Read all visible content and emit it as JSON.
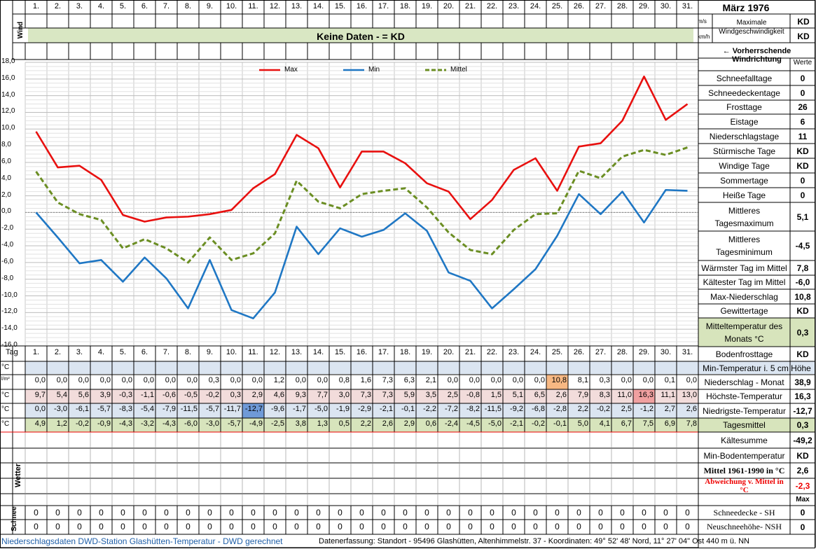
{
  "month_title": "März 1976",
  "days": [
    "1.",
    "2.",
    "3.",
    "4.",
    "5.",
    "6.",
    "7.",
    "8.",
    "9.",
    "10.",
    "11.",
    "12.",
    "13.",
    "14.",
    "15.",
    "16.",
    "17.",
    "18.",
    "19.",
    "20.",
    "21.",
    "22.",
    "23.",
    "24.",
    "25.",
    "26.",
    "27.",
    "28.",
    "29.",
    "30.",
    "31."
  ],
  "wind": {
    "label": "Wind",
    "unit_ms": "m/s",
    "unit_kmh": "km/h",
    "max_label": "Maximale Windgeschwindigkeit",
    "max_value": "KD",
    "max_value2": "KD",
    "no_data": "Keine Daten -  = KD",
    "direction_label": "← Vorherrschende Windrichtung"
  },
  "chart_data": {
    "type": "line",
    "x": [
      "1.",
      "2.",
      "3.",
      "4.",
      "5.",
      "6.",
      "7.",
      "8.",
      "9.",
      "10.",
      "11.",
      "12.",
      "13.",
      "14.",
      "15.",
      "16.",
      "17.",
      "18.",
      "19.",
      "20.",
      "21.",
      "22.",
      "23.",
      "24.",
      "25.",
      "26.",
      "27.",
      "28.",
      "29.",
      "30.",
      "31."
    ],
    "ylim": [
      -16,
      18
    ],
    "yticks": [
      "18,0",
      "16,0",
      "14,0",
      "12,0",
      "10,0",
      "8,0",
      "6,0",
      "4,0",
      "2,0",
      "0,0",
      "-2,0",
      "-4,0",
      "-6,0",
      "-8,0",
      "-10,0",
      "-12,0",
      "-14,0",
      "-16,0"
    ],
    "grid": true,
    "legend_position": "top",
    "series": [
      {
        "name": "Max",
        "color": "#e8100f",
        "dash": false,
        "values": [
          9.7,
          5.4,
          5.6,
          3.9,
          -0.3,
          -1.1,
          -0.6,
          -0.5,
          -0.2,
          0.3,
          2.9,
          4.6,
          9.3,
          7.7,
          3.0,
          7.3,
          7.3,
          5.9,
          3.5,
          2.5,
          -0.8,
          1.5,
          5.1,
          6.5,
          2.6,
          7.9,
          8.3,
          11.0,
          16.3,
          11.1,
          13.0
        ]
      },
      {
        "name": "Min",
        "color": "#1f77c4",
        "dash": false,
        "values": [
          0.0,
          -3.0,
          -6.1,
          -5.7,
          -8.3,
          -5.4,
          -7.9,
          -11.5,
          -5.7,
          -11.7,
          -12.7,
          -9.6,
          -1.7,
          -5.0,
          -1.9,
          -2.9,
          -2.1,
          -0.1,
          -2.2,
          -7.2,
          -8.2,
          -11.5,
          -9.2,
          -6.8,
          -2.8,
          2.2,
          -0.2,
          2.5,
          -1.2,
          2.7,
          2.6
        ]
      },
      {
        "name": "Mittel",
        "color": "#6b8e23",
        "dash": true,
        "values": [
          4.9,
          1.2,
          -0.2,
          -0.9,
          -4.3,
          -3.2,
          -4.3,
          -6.0,
          -3.0,
          -5.7,
          -4.9,
          -2.5,
          3.8,
          1.3,
          0.5,
          2.2,
          2.6,
          2.9,
          0.6,
          -2.4,
          -4.5,
          -5.0,
          -2.1,
          -0.2,
          -0.1,
          5.0,
          4.1,
          6.7,
          7.5,
          6.9,
          7.8
        ]
      }
    ]
  },
  "table": {
    "tag_label": "Tag",
    "units": [
      "°C",
      "l/m²",
      "°C",
      "°C",
      "°C"
    ],
    "niederschlag": [
      "0,0",
      "0,0",
      "0,0",
      "0,0",
      "0,0",
      "0,0",
      "0,0",
      "0,0",
      "0,3",
      "0,0",
      "0,0",
      "1,2",
      "0,0",
      "0,0",
      "0,8",
      "1,6",
      "7,3",
      "6,3",
      "2,1",
      "0,0",
      "0,0",
      "0,0",
      "0,0",
      "0,0",
      "10,8",
      "8,1",
      "0,3",
      "0,0",
      "0,0",
      "0,1",
      "0,0"
    ],
    "hoechst": [
      "9,7",
      "5,4",
      "5,6",
      "3,9",
      "-0,3",
      "-1,1",
      "-0,6",
      "-0,5",
      "-0,2",
      "0,3",
      "2,9",
      "4,6",
      "9,3",
      "7,7",
      "3,0",
      "7,3",
      "7,3",
      "5,9",
      "3,5",
      "2,5",
      "-0,8",
      "1,5",
      "5,1",
      "6,5",
      "2,6",
      "7,9",
      "8,3",
      "11,0",
      "16,3",
      "11,1",
      "13,0"
    ],
    "niedrigst": [
      "0,0",
      "-3,0",
      "-6,1",
      "-5,7",
      "-8,3",
      "-5,4",
      "-7,9",
      "-11,5",
      "-5,7",
      "-11,7",
      "-12,7",
      "-9,6",
      "-1,7",
      "-5,0",
      "-1,9",
      "-2,9",
      "-2,1",
      "-0,1",
      "-2,2",
      "-7,2",
      "-8,2",
      "-11,5",
      "-9,2",
      "-6,8",
      "-2,8",
      "2,2",
      "-0,2",
      "2,5",
      "-1,2",
      "2,7",
      "2,6"
    ],
    "mittel": [
      "4,9",
      "1,2",
      "-0,2",
      "-0,9",
      "-4,3",
      "-3,2",
      "-4,3",
      "-6,0",
      "-3,0",
      "-5,7",
      "-4,9",
      "-2,5",
      "3,8",
      "1,3",
      "0,5",
      "2,2",
      "2,6",
      "2,9",
      "0,6",
      "-2,4",
      "-4,5",
      "-5,0",
      "-2,1",
      "-0,2",
      "-0,1",
      "5,0",
      "4,1",
      "6,7",
      "7,5",
      "6,9",
      "7,8"
    ],
    "wetter_label": "Wetter",
    "schnee_label": "Schnee",
    "schnee_sh": [
      "0",
      "0",
      "0",
      "0",
      "0",
      "0",
      "0",
      "0",
      "0",
      "0",
      "0",
      "0",
      "0",
      "0",
      "0",
      "0",
      "0",
      "0",
      "0",
      "0",
      "0",
      "0",
      "0",
      "0",
      "0",
      "0",
      "0",
      "0",
      "0",
      "0",
      "0"
    ],
    "schnee_nsh": [
      "0",
      "0",
      "0",
      "0",
      "0",
      "0",
      "0",
      "0",
      "0",
      "0",
      "0",
      "0",
      "0",
      "0",
      "0",
      "0",
      "0",
      "0",
      "0",
      "0",
      "0",
      "0",
      "0",
      "0",
      "0",
      "0",
      "0",
      "0",
      "0",
      "0",
      "0"
    ]
  },
  "stats": {
    "werte_label": "Werte",
    "items": [
      {
        "label": "Schneefalltage",
        "value": "0"
      },
      {
        "label": "Schneedeckentage",
        "value": "0"
      },
      {
        "label": "Frosttage",
        "value": "26"
      },
      {
        "label": "Eistage",
        "value": "6"
      },
      {
        "label": "Niederschlagstage",
        "value": "11"
      },
      {
        "label": "Stürmische Tage",
        "value": "KD"
      },
      {
        "label": "Windige Tage",
        "value": "KD"
      },
      {
        "label": "Sommertage",
        "value": "0"
      },
      {
        "label": "Heiße Tage",
        "value": "0"
      },
      {
        "label": "Mittleres Tagesmaximum",
        "value": "5,1"
      },
      {
        "label": "Mittleres Tagesminimum",
        "value": "-4,5"
      },
      {
        "label": "Wärmster Tag im Mittel",
        "value": "7,8"
      },
      {
        "label": "Kältester Tag im Mittel",
        "value": "-6,0"
      },
      {
        "label": "Max-Niederschlag",
        "value": "10,8"
      },
      {
        "label": "Gewittertage",
        "value": "KD"
      },
      {
        "label": "Mitteltemperatur des Monats °C",
        "value": "0,3"
      },
      {
        "label": "Bodenfrosttage",
        "value": "KD"
      }
    ],
    "lower": [
      {
        "label": "Min-Temperatur i. 5 cm Höhe",
        "value": ""
      },
      {
        "label": "Niederschlag - Monat",
        "value": "38,9"
      },
      {
        "label": "Höchste-Temperatur",
        "value": "16,3"
      },
      {
        "label": "Niedrigste-Temperatur",
        "value": "-12,7"
      },
      {
        "label": "Tagesmittel",
        "value": "0,3"
      },
      {
        "label": "Kältesumme",
        "value": "-49,2"
      },
      {
        "label": "Min-Bodentemperatur",
        "value": "KD"
      },
      {
        "label": "Mittel 1961-1990 in °C",
        "value": "2,6"
      },
      {
        "label": "Abweichung v. Mittel in °C",
        "value": "-2,3"
      },
      {
        "label": "",
        "value": "Max"
      },
      {
        "label": "Schneedecke -   SH",
        "value": "0"
      },
      {
        "label": "Neuschneehöhe- NSH",
        "value": "0"
      }
    ]
  },
  "footer": {
    "left": "Niederschlagsdaten DWD-Station Glashütten-Temperatur -  DWD gerechnet",
    "right": "Datenerfassung: Standort -  95496  Glashütten, Altenhimmelstr. 37 - Koordinaten:  49° 52' 48' Nord,   11° 27' 04\" Ost   440 m ü. NN"
  },
  "colors": {
    "grid": "#c8c8c8",
    "header_bg": "#d9e7c3",
    "row_blue": "#dbe5f1",
    "row_pink": "#f2dcdb",
    "row_green": "#d7e4bc",
    "highlight_orange": "#f7b883",
    "highlight_blue": "#6f9ad8",
    "highlight_pink": "#f0a0a0"
  }
}
